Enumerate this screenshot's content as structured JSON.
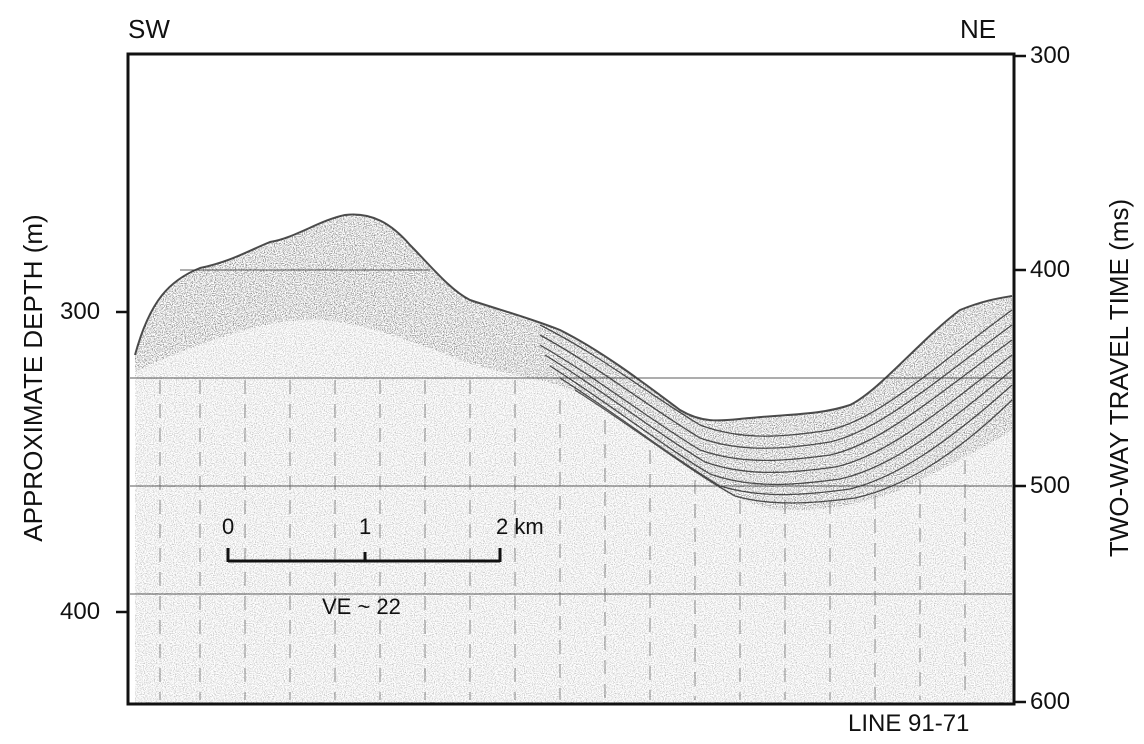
{
  "orientation": {
    "left": "SW",
    "right": "NE"
  },
  "left_axis": {
    "title": "APPROXIMATE DEPTH (m)",
    "ticks": [
      "300",
      "400"
    ]
  },
  "right_axis": {
    "title": "TWO-WAY TRAVEL TIME (ms)",
    "ticks": [
      "300",
      "400",
      "500",
      "600"
    ]
  },
  "line_label": "LINE 91-71",
  "scale_bar": {
    "labels": [
      "0",
      "1",
      "2 km"
    ],
    "ve_label": "VE ~ 22"
  },
  "colors": {
    "ink": "#111111",
    "paper": "#ffffff",
    "grid": "#444444"
  }
}
